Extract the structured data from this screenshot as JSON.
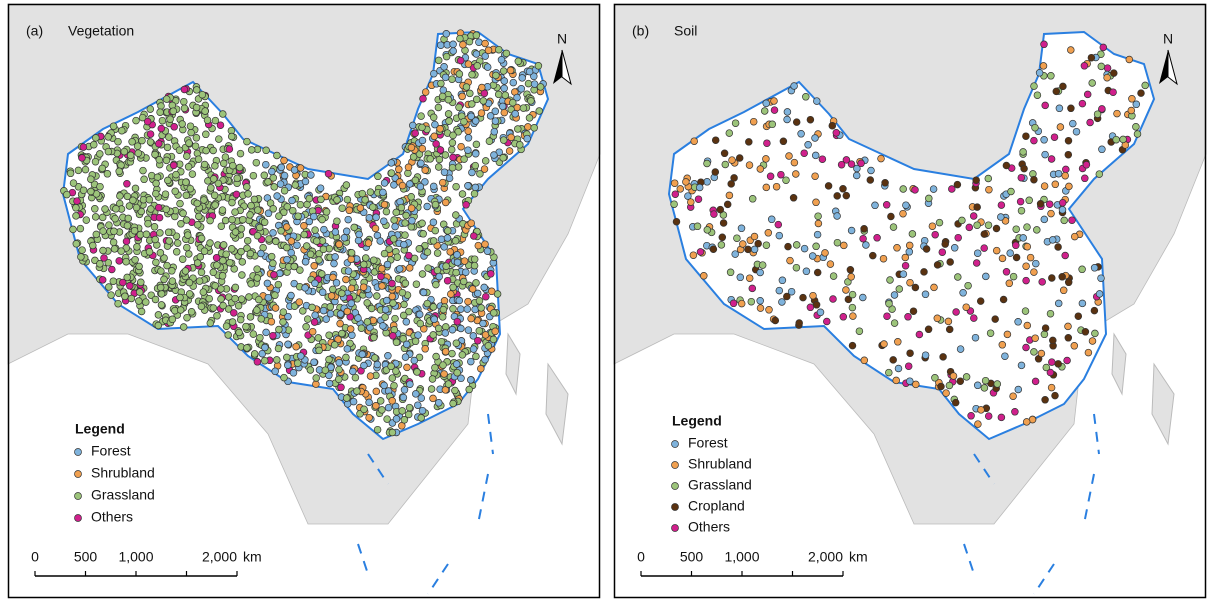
{
  "panels": [
    {
      "label": "(a)",
      "title": "Vegetation",
      "north": "N",
      "legend": {
        "title": "Legend",
        "items": [
          {
            "name": "Forest",
            "color": "#7fb3dc"
          },
          {
            "name": "Shrubland",
            "color": "#f0a050"
          },
          {
            "name": "Grassland",
            "color": "#9cc47a"
          },
          {
            "name": "Others",
            "color": "#d0208c"
          }
        ]
      },
      "scale": {
        "ticks": [
          "0",
          "500",
          "1,000",
          "2,000"
        ],
        "unit": "km"
      }
    },
    {
      "label": "(b)",
      "title": "Soil",
      "north": "N",
      "legend": {
        "title": "Legend",
        "items": [
          {
            "name": "Forest",
            "color": "#7fb3dc"
          },
          {
            "name": "Shrubland",
            "color": "#f0a050"
          },
          {
            "name": "Grassland",
            "color": "#9cc47a"
          },
          {
            "name": "Cropland",
            "color": "#5a3210"
          },
          {
            "name": "Others",
            "color": "#d0208c"
          }
        ]
      },
      "scale": {
        "ticks": [
          "0",
          "500",
          "1,000",
          "2,000"
        ],
        "unit": "km"
      }
    }
  ]
}
